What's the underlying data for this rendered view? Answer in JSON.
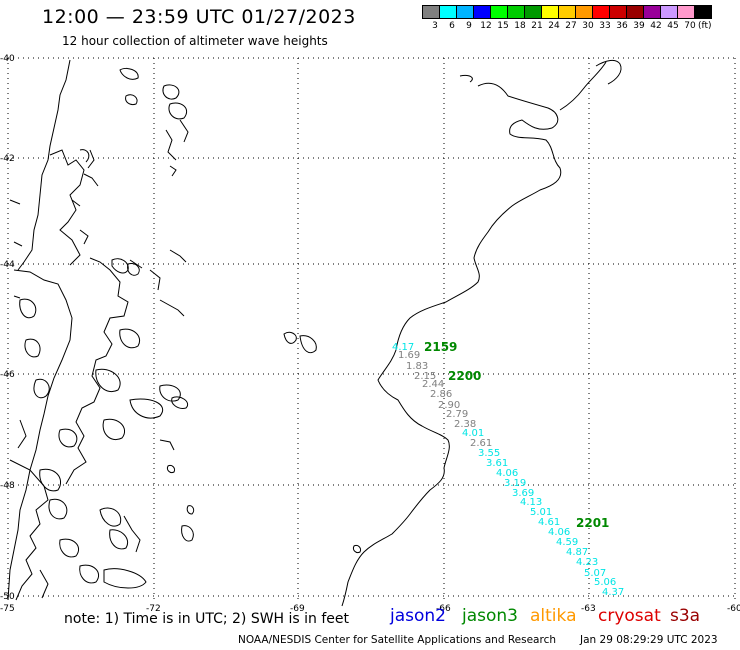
{
  "header": {
    "title": "12:00 — 23:59 UTC 01/27/2023",
    "subtitle": "12 hour collection of altimeter wave heights"
  },
  "legend": {
    "colors": [
      "#808080",
      "#00ffff",
      "#00b4ff",
      "#0000ff",
      "#00ff00",
      "#00cc00",
      "#009900",
      "#ffff00",
      "#ffcc00",
      "#ff9900",
      "#ff0000",
      "#cc0000",
      "#990000",
      "#990099",
      "#cc99ff",
      "#ff99cc",
      "#000000"
    ],
    "labels": [
      "3",
      "6",
      "9",
      "12",
      "15",
      "18",
      "21",
      "24",
      "27",
      "30",
      "33",
      "36",
      "39",
      "42",
      "45",
      "70",
      "(ft)"
    ]
  },
  "axes": {
    "lat_labels": [
      "-40",
      "-42",
      "-44",
      "-46",
      "-48",
      "-50"
    ],
    "lon_labels": [
      "-75",
      "-72",
      "-69",
      "-66",
      "-63",
      "-60"
    ]
  },
  "passes": {
    "time_labels": [
      "2159",
      "2200",
      "2201"
    ],
    "points": [
      {
        "value": "4.17",
        "color": "#00e5e5"
      },
      {
        "value": "1.69",
        "color": "#808080"
      },
      {
        "value": "1.83",
        "color": "#808080"
      },
      {
        "value": "2.15",
        "color": "#808080"
      },
      {
        "value": "2.44",
        "color": "#808080"
      },
      {
        "value": "2.86",
        "color": "#808080"
      },
      {
        "value": "2.90",
        "color": "#808080"
      },
      {
        "value": "2.79",
        "color": "#808080"
      },
      {
        "value": "2.38",
        "color": "#808080"
      },
      {
        "value": "4.01",
        "color": "#00e5e5"
      },
      {
        "value": "2.61",
        "color": "#808080"
      },
      {
        "value": "3.55",
        "color": "#00e5e5"
      },
      {
        "value": "3.61",
        "color": "#00e5e5"
      },
      {
        "value": "4.06",
        "color": "#00e5e5"
      },
      {
        "value": "3.19",
        "color": "#00e5e5"
      },
      {
        "value": "3.69",
        "color": "#00e5e5"
      },
      {
        "value": "4.13",
        "color": "#00e5e5"
      },
      {
        "value": "5.01",
        "color": "#00e5e5"
      },
      {
        "value": "4.61",
        "color": "#00e5e5"
      },
      {
        "value": "4.06",
        "color": "#00e5e5"
      },
      {
        "value": "4.59",
        "color": "#00e5e5"
      },
      {
        "value": "4.87",
        "color": "#00e5e5"
      },
      {
        "value": "4.23",
        "color": "#00e5e5"
      },
      {
        "value": "5.07",
        "color": "#00e5e5"
      },
      {
        "value": "5.06",
        "color": "#00e5e5"
      },
      {
        "value": "4.37",
        "color": "#00e5e5"
      }
    ]
  },
  "footer": {
    "note": "note: 1) Time is in UTC; 2) SWH is in feet",
    "satellites": [
      {
        "name": "jason2",
        "color": "#0000dd"
      },
      {
        "name": "jason3",
        "color": "#008800"
      },
      {
        "name": "altika",
        "color": "#ff9900"
      },
      {
        "name": "cryosat",
        "color": "#dd0000"
      },
      {
        "name": "s3a",
        "color": "#990000"
      }
    ],
    "credit": "NOAA/NESDIS Center for Satellite Applications and Research",
    "timestamp": "Jan 29 08:29:29 UTC 2023"
  }
}
